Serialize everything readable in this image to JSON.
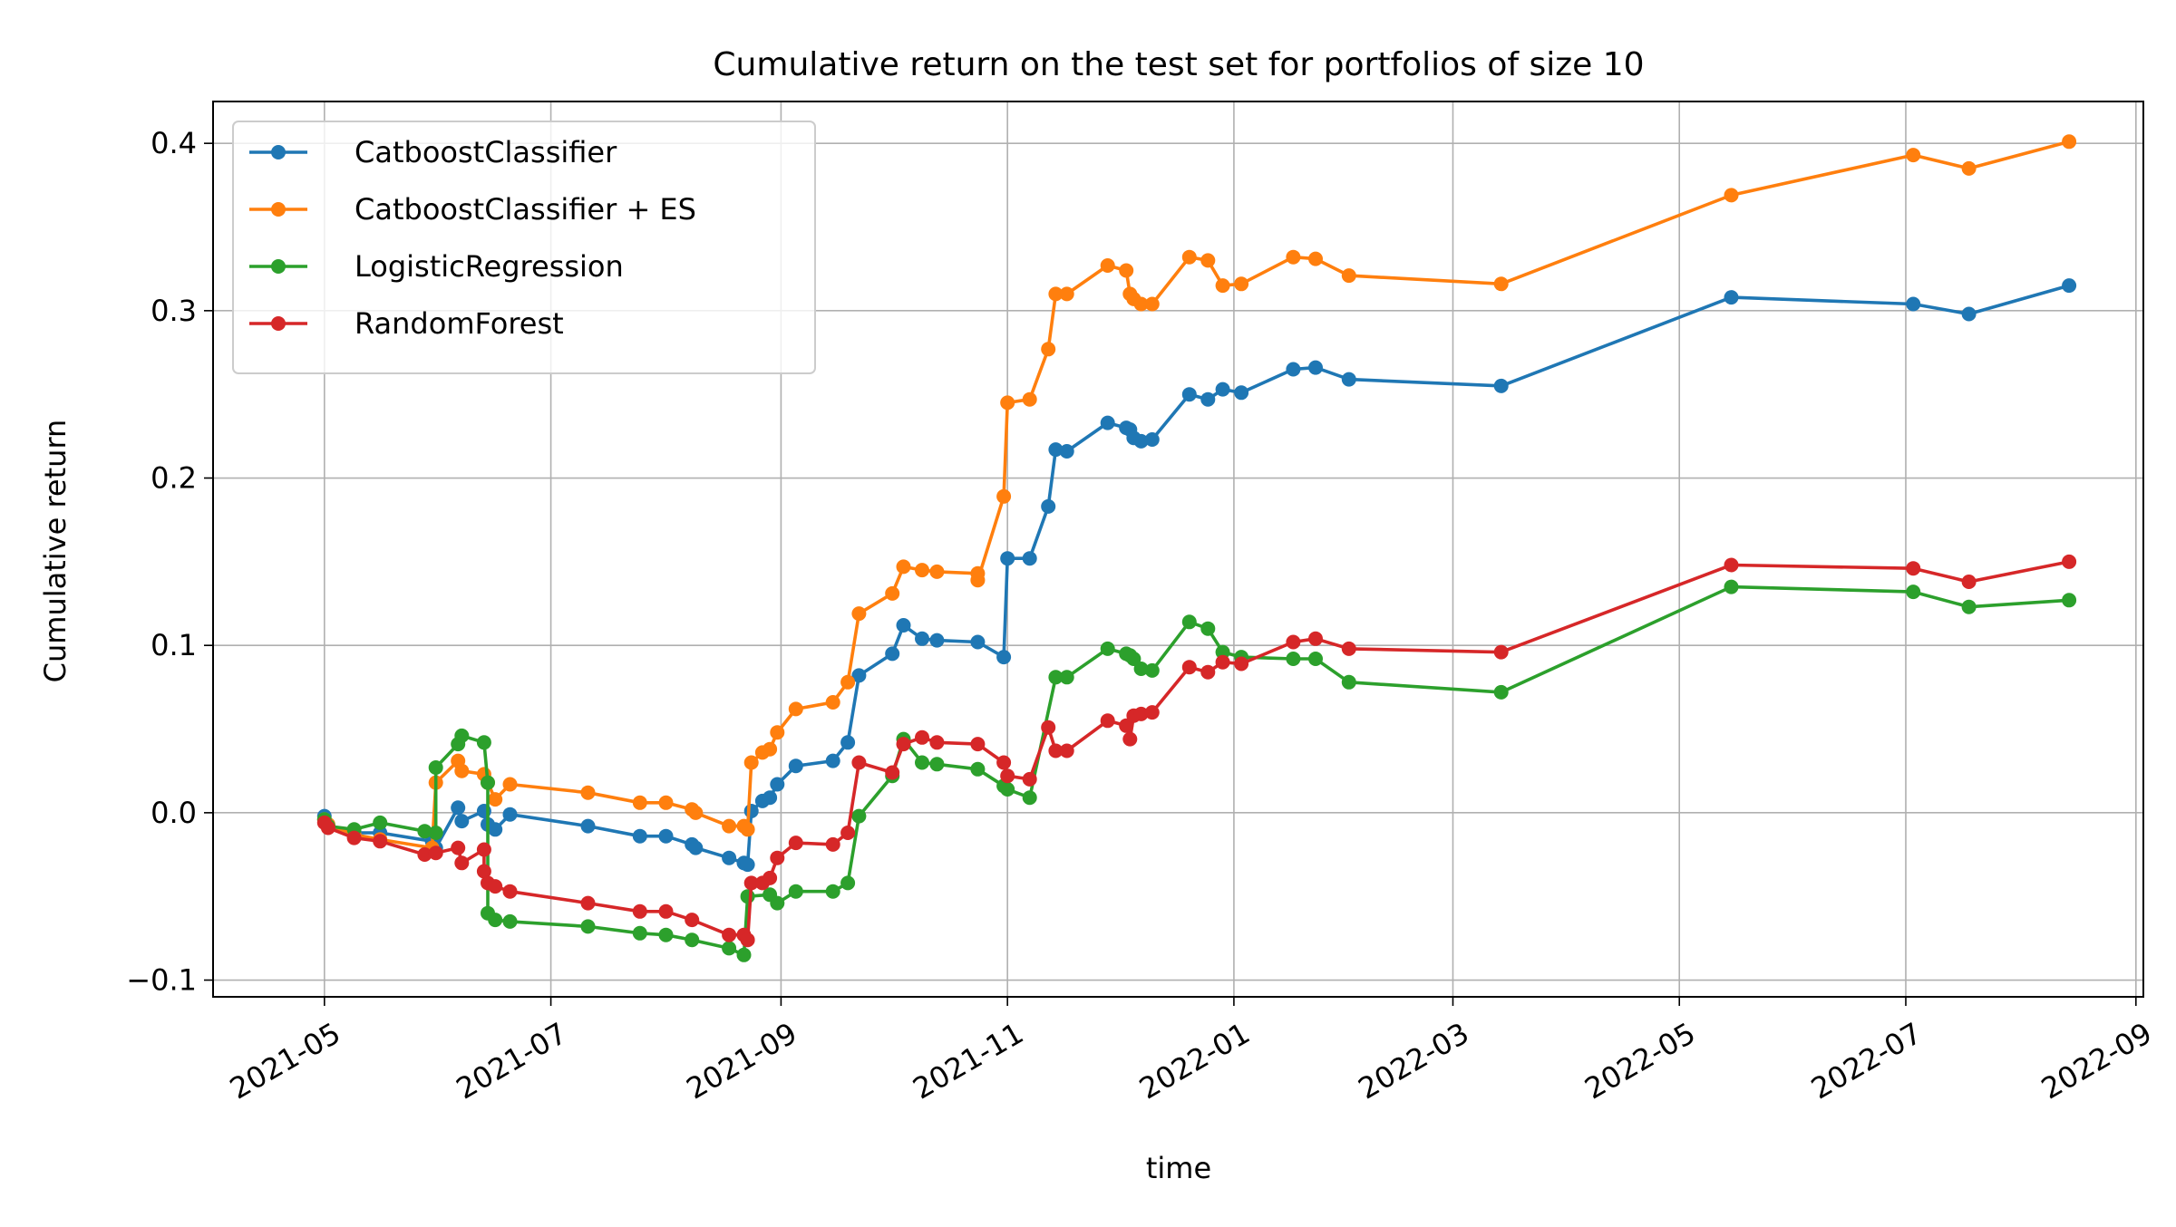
{
  "chart_data": {
    "type": "line",
    "title": "Cumulative return on the test set for portfolios of size 10",
    "xlabel": "time",
    "ylabel": "Cumulative return",
    "xlim": [
      "2021-04-01",
      "2022-09-03"
    ],
    "ylim": [
      -0.11,
      0.425
    ],
    "x_ticks": [
      "2021-05",
      "2021-07",
      "2021-09",
      "2021-11",
      "2022-01",
      "2022-03",
      "2022-05",
      "2022-07",
      "2022-09"
    ],
    "y_ticks": [
      -0.1,
      0.0,
      0.1,
      0.2,
      0.3,
      0.4
    ],
    "y_tick_labels": [
      "−0.1",
      "0.0",
      "0.1",
      "0.2",
      "0.3",
      "0.4"
    ],
    "grid": true,
    "legend_position": "top-left",
    "series": [
      {
        "name": "CatboostClassifier",
        "color": "#1f77b4",
        "points": [
          [
            "2021-05-01",
            -0.002
          ],
          [
            "2021-05-02",
            -0.008
          ],
          [
            "2021-05-09",
            -0.012
          ],
          [
            "2021-05-16",
            -0.012
          ],
          [
            "2021-05-30",
            -0.017
          ],
          [
            "2021-05-31",
            -0.021
          ],
          [
            "2021-06-06",
            0.003
          ],
          [
            "2021-06-07",
            -0.005
          ],
          [
            "2021-06-13",
            0.001
          ],
          [
            "2021-06-14",
            -0.007
          ],
          [
            "2021-06-16",
            -0.01
          ],
          [
            "2021-06-20",
            -0.001
          ],
          [
            "2021-07-11",
            -0.008
          ],
          [
            "2021-07-25",
            -0.014
          ],
          [
            "2021-08-01",
            -0.014
          ],
          [
            "2021-08-08",
            -0.019
          ],
          [
            "2021-08-09",
            -0.021
          ],
          [
            "2021-08-18",
            -0.027
          ],
          [
            "2021-08-22",
            -0.03
          ],
          [
            "2021-08-23",
            -0.031
          ],
          [
            "2021-08-24",
            0.001
          ],
          [
            "2021-08-27",
            0.007
          ],
          [
            "2021-08-29",
            0.009
          ],
          [
            "2021-08-31",
            0.017
          ],
          [
            "2021-09-05",
            0.028
          ],
          [
            "2021-09-15",
            0.031
          ],
          [
            "2021-09-19",
            0.042
          ],
          [
            "2021-09-22",
            0.082
          ],
          [
            "2021-10-01",
            0.095
          ],
          [
            "2021-10-04",
            0.112
          ],
          [
            "2021-10-09",
            0.104
          ],
          [
            "2021-10-13",
            0.103
          ],
          [
            "2021-10-24",
            0.102
          ],
          [
            "2021-10-31",
            0.093
          ],
          [
            "2021-11-01",
            0.152
          ],
          [
            "2021-11-07",
            0.152
          ],
          [
            "2021-11-12",
            0.183
          ],
          [
            "2021-11-14",
            0.217
          ],
          [
            "2021-11-17",
            0.216
          ],
          [
            "2021-11-28",
            0.233
          ],
          [
            "2021-12-03",
            0.23
          ],
          [
            "2021-12-04",
            0.229
          ],
          [
            "2021-12-05",
            0.224
          ],
          [
            "2021-12-07",
            0.222
          ],
          [
            "2021-12-10",
            0.223
          ],
          [
            "2021-12-20",
            0.25
          ],
          [
            "2021-12-25",
            0.247
          ],
          [
            "2021-12-29",
            0.253
          ],
          [
            "2022-01-03",
            0.251
          ],
          [
            "2022-01-17",
            0.265
          ],
          [
            "2022-01-23",
            0.266
          ],
          [
            "2022-02-01",
            0.259
          ],
          [
            "2022-03-14",
            0.255
          ],
          [
            "2022-05-15",
            0.308
          ],
          [
            "2022-07-03",
            0.304
          ],
          [
            "2022-07-18",
            0.298
          ],
          [
            "2022-08-14",
            0.315
          ]
        ]
      },
      {
        "name": "CatboostClassifier + ES",
        "color": "#ff7f0e",
        "points": [
          [
            "2021-05-01",
            -0.004
          ],
          [
            "2021-05-02",
            -0.007
          ],
          [
            "2021-05-09",
            -0.013
          ],
          [
            "2021-05-16",
            -0.016
          ],
          [
            "2021-05-30",
            -0.021
          ],
          [
            "2021-05-31",
            0.018
          ],
          [
            "2021-06-06",
            0.031
          ],
          [
            "2021-06-07",
            0.025
          ],
          [
            "2021-06-13",
            0.023
          ],
          [
            "2021-06-14",
            0.018
          ],
          [
            "2021-06-16",
            0.008
          ],
          [
            "2021-06-20",
            0.017
          ],
          [
            "2021-07-11",
            0.012
          ],
          [
            "2021-07-25",
            0.006
          ],
          [
            "2021-08-01",
            0.006
          ],
          [
            "2021-08-08",
            0.002
          ],
          [
            "2021-08-09",
            0.0
          ],
          [
            "2021-08-18",
            -0.008
          ],
          [
            "2021-08-22",
            -0.008
          ],
          [
            "2021-08-23",
            -0.01
          ],
          [
            "2021-08-24",
            0.03
          ],
          [
            "2021-08-27",
            0.036
          ],
          [
            "2021-08-29",
            0.038
          ],
          [
            "2021-08-31",
            0.048
          ],
          [
            "2021-09-05",
            0.062
          ],
          [
            "2021-09-15",
            0.066
          ],
          [
            "2021-09-19",
            0.078
          ],
          [
            "2021-09-22",
            0.119
          ],
          [
            "2021-10-01",
            0.131
          ],
          [
            "2021-10-04",
            0.147
          ],
          [
            "2021-10-09",
            0.145
          ],
          [
            "2021-10-13",
            0.144
          ],
          [
            "2021-10-24",
            0.143
          ],
          [
            "2021-10-24",
            0.139
          ],
          [
            "2021-10-31",
            0.189
          ],
          [
            "2021-11-01",
            0.245
          ],
          [
            "2021-11-07",
            0.247
          ],
          [
            "2021-11-12",
            0.277
          ],
          [
            "2021-11-14",
            0.31
          ],
          [
            "2021-11-17",
            0.31
          ],
          [
            "2021-11-28",
            0.327
          ],
          [
            "2021-12-03",
            0.324
          ],
          [
            "2021-12-04",
            0.31
          ],
          [
            "2021-12-05",
            0.307
          ],
          [
            "2021-12-07",
            0.304
          ],
          [
            "2021-12-10",
            0.304
          ],
          [
            "2021-12-20",
            0.332
          ],
          [
            "2021-12-25",
            0.33
          ],
          [
            "2021-12-29",
            0.315
          ],
          [
            "2022-01-03",
            0.316
          ],
          [
            "2022-01-17",
            0.332
          ],
          [
            "2022-01-23",
            0.331
          ],
          [
            "2022-02-01",
            0.321
          ],
          [
            "2022-03-14",
            0.316
          ],
          [
            "2022-05-15",
            0.369
          ],
          [
            "2022-07-03",
            0.393
          ],
          [
            "2022-07-18",
            0.385
          ],
          [
            "2022-08-14",
            0.401
          ]
        ]
      },
      {
        "name": "LogisticRegression",
        "color": "#2ca02c",
        "points": [
          [
            "2021-05-01",
            -0.004
          ],
          [
            "2021-05-02",
            -0.008
          ],
          [
            "2021-05-09",
            -0.01
          ],
          [
            "2021-05-16",
            -0.006
          ],
          [
            "2021-05-28",
            -0.011
          ],
          [
            "2021-05-31",
            -0.012
          ],
          [
            "2021-05-31",
            0.027
          ],
          [
            "2021-06-06",
            0.041
          ],
          [
            "2021-06-07",
            0.046
          ],
          [
            "2021-06-13",
            0.042
          ],
          [
            "2021-06-14",
            0.018
          ],
          [
            "2021-06-14",
            -0.06
          ],
          [
            "2021-06-16",
            -0.064
          ],
          [
            "2021-06-20",
            -0.065
          ],
          [
            "2021-07-11",
            -0.068
          ],
          [
            "2021-07-25",
            -0.072
          ],
          [
            "2021-08-01",
            -0.073
          ],
          [
            "2021-08-08",
            -0.076
          ],
          [
            "2021-08-18",
            -0.081
          ],
          [
            "2021-08-22",
            -0.085
          ],
          [
            "2021-08-23",
            -0.05
          ],
          [
            "2021-08-29",
            -0.049
          ],
          [
            "2021-08-31",
            -0.054
          ],
          [
            "2021-09-05",
            -0.047
          ],
          [
            "2021-09-15",
            -0.047
          ],
          [
            "2021-09-19",
            -0.042
          ],
          [
            "2021-09-22",
            -0.002
          ],
          [
            "2021-10-01",
            0.022
          ],
          [
            "2021-10-04",
            0.044
          ],
          [
            "2021-10-09",
            0.03
          ],
          [
            "2021-10-13",
            0.029
          ],
          [
            "2021-10-24",
            0.026
          ],
          [
            "2021-10-31",
            0.016
          ],
          [
            "2021-11-01",
            0.014
          ],
          [
            "2021-11-07",
            0.009
          ],
          [
            "2021-11-14",
            0.081
          ],
          [
            "2021-11-17",
            0.081
          ],
          [
            "2021-11-28",
            0.098
          ],
          [
            "2021-12-03",
            0.095
          ],
          [
            "2021-12-04",
            0.094
          ],
          [
            "2021-12-05",
            0.092
          ],
          [
            "2021-12-07",
            0.086
          ],
          [
            "2021-12-10",
            0.085
          ],
          [
            "2021-12-20",
            0.114
          ],
          [
            "2021-12-25",
            0.11
          ],
          [
            "2021-12-29",
            0.096
          ],
          [
            "2022-01-03",
            0.093
          ],
          [
            "2022-01-17",
            0.092
          ],
          [
            "2022-01-23",
            0.092
          ],
          [
            "2022-02-01",
            0.078
          ],
          [
            "2022-03-14",
            0.072
          ],
          [
            "2022-05-15",
            0.135
          ],
          [
            "2022-07-03",
            0.132
          ],
          [
            "2022-07-18",
            0.123
          ],
          [
            "2022-08-14",
            0.127
          ]
        ]
      },
      {
        "name": "RandomForest",
        "color": "#d62728",
        "points": [
          [
            "2021-05-01",
            -0.006
          ],
          [
            "2021-05-02",
            -0.009
          ],
          [
            "2021-05-09",
            -0.015
          ],
          [
            "2021-05-16",
            -0.017
          ],
          [
            "2021-05-28",
            -0.025
          ],
          [
            "2021-05-31",
            -0.024
          ],
          [
            "2021-06-06",
            -0.021
          ],
          [
            "2021-06-07",
            -0.03
          ],
          [
            "2021-06-13",
            -0.022
          ],
          [
            "2021-06-13",
            -0.035
          ],
          [
            "2021-06-14",
            -0.042
          ],
          [
            "2021-06-16",
            -0.044
          ],
          [
            "2021-06-20",
            -0.047
          ],
          [
            "2021-07-11",
            -0.054
          ],
          [
            "2021-07-25",
            -0.059
          ],
          [
            "2021-08-01",
            -0.059
          ],
          [
            "2021-08-08",
            -0.064
          ],
          [
            "2021-08-18",
            -0.073
          ],
          [
            "2021-08-22",
            -0.073
          ],
          [
            "2021-08-23",
            -0.076
          ],
          [
            "2021-08-24",
            -0.042
          ],
          [
            "2021-08-27",
            -0.042
          ],
          [
            "2021-08-29",
            -0.039
          ],
          [
            "2021-08-31",
            -0.027
          ],
          [
            "2021-09-05",
            -0.018
          ],
          [
            "2021-09-15",
            -0.019
          ],
          [
            "2021-09-19",
            -0.012
          ],
          [
            "2021-09-22",
            0.03
          ],
          [
            "2021-10-01",
            0.024
          ],
          [
            "2021-10-04",
            0.041
          ],
          [
            "2021-10-09",
            0.045
          ],
          [
            "2021-10-13",
            0.042
          ],
          [
            "2021-10-24",
            0.041
          ],
          [
            "2021-10-31",
            0.03
          ],
          [
            "2021-11-01",
            0.022
          ],
          [
            "2021-11-07",
            0.02
          ],
          [
            "2021-11-12",
            0.051
          ],
          [
            "2021-11-14",
            0.037
          ],
          [
            "2021-11-17",
            0.037
          ],
          [
            "2021-11-28",
            0.055
          ],
          [
            "2021-12-03",
            0.052
          ],
          [
            "2021-12-04",
            0.044
          ],
          [
            "2021-12-05",
            0.058
          ],
          [
            "2021-12-07",
            0.059
          ],
          [
            "2021-12-10",
            0.06
          ],
          [
            "2021-12-20",
            0.087
          ],
          [
            "2021-12-25",
            0.084
          ],
          [
            "2021-12-29",
            0.09
          ],
          [
            "2022-01-03",
            0.089
          ],
          [
            "2022-01-17",
            0.102
          ],
          [
            "2022-01-23",
            0.104
          ],
          [
            "2022-02-01",
            0.098
          ],
          [
            "2022-03-14",
            0.096
          ],
          [
            "2022-05-15",
            0.148
          ],
          [
            "2022-07-03",
            0.146
          ],
          [
            "2022-07-18",
            0.138
          ],
          [
            "2022-08-14",
            0.15
          ]
        ]
      }
    ]
  }
}
